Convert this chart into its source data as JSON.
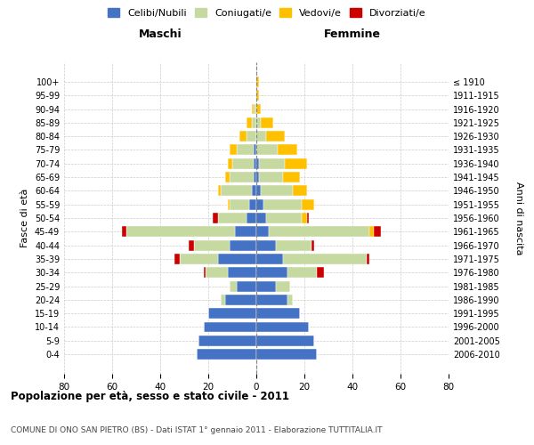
{
  "age_groups": [
    "0-4",
    "5-9",
    "10-14",
    "15-19",
    "20-24",
    "25-29",
    "30-34",
    "35-39",
    "40-44",
    "45-49",
    "50-54",
    "55-59",
    "60-64",
    "65-69",
    "70-74",
    "75-79",
    "80-84",
    "85-89",
    "90-94",
    "95-99",
    "100+"
  ],
  "birth_years": [
    "2006-2010",
    "2001-2005",
    "1996-2000",
    "1991-1995",
    "1986-1990",
    "1981-1985",
    "1976-1980",
    "1971-1975",
    "1966-1970",
    "1961-1965",
    "1956-1960",
    "1951-1955",
    "1946-1950",
    "1941-1945",
    "1936-1940",
    "1931-1935",
    "1926-1930",
    "1921-1925",
    "1916-1920",
    "1911-1915",
    "≤ 1910"
  ],
  "colors": {
    "celibi": "#4472c4",
    "coniugati": "#c5d9a0",
    "vedovi": "#ffc000",
    "divorziati": "#cc0000"
  },
  "maschi": {
    "celibi": [
      25,
      24,
      22,
      20,
      13,
      8,
      12,
      16,
      11,
      9,
      4,
      3,
      2,
      1,
      1,
      1,
      0,
      0,
      0,
      0,
      0
    ],
    "coniugati": [
      0,
      0,
      0,
      0,
      2,
      3,
      9,
      16,
      15,
      45,
      12,
      8,
      13,
      10,
      9,
      7,
      4,
      2,
      1,
      0,
      0
    ],
    "vedovi": [
      0,
      0,
      0,
      0,
      0,
      0,
      0,
      0,
      0,
      0,
      0,
      1,
      1,
      2,
      2,
      3,
      3,
      2,
      1,
      0,
      0
    ],
    "divorziati": [
      0,
      0,
      0,
      0,
      0,
      0,
      1,
      2,
      2,
      2,
      2,
      0,
      0,
      0,
      0,
      0,
      0,
      0,
      0,
      0,
      0
    ]
  },
  "femmine": {
    "celibi": [
      25,
      24,
      22,
      18,
      13,
      8,
      13,
      11,
      8,
      5,
      4,
      3,
      2,
      1,
      1,
      0,
      0,
      0,
      0,
      0,
      0
    ],
    "coniugati": [
      0,
      0,
      0,
      0,
      2,
      6,
      12,
      35,
      15,
      42,
      15,
      16,
      13,
      10,
      11,
      9,
      4,
      2,
      0,
      0,
      0
    ],
    "vedovi": [
      0,
      0,
      0,
      0,
      0,
      0,
      0,
      0,
      0,
      2,
      2,
      5,
      6,
      7,
      9,
      8,
      8,
      5,
      2,
      1,
      1
    ],
    "divorziati": [
      0,
      0,
      0,
      0,
      0,
      0,
      3,
      1,
      1,
      3,
      1,
      0,
      0,
      0,
      0,
      0,
      0,
      0,
      0,
      0,
      0
    ]
  },
  "xlim": 80,
  "title_main": "Popolazione per età, sesso e stato civile - 2011",
  "title_sub": "COMUNE DI ONO SAN PIETRO (BS) - Dati ISTAT 1° gennaio 2011 - Elaborazione TUTTITALIA.IT",
  "ylabel_left": "Fasce di età",
  "ylabel_right": "Anni di nascita",
  "label_maschi": "Maschi",
  "label_femmine": "Femmine",
  "legend_labels": [
    "Celibi/Nubili",
    "Coniugati/e",
    "Vedovi/e",
    "Divorziati/e"
  ],
  "bg_color": "#ffffff",
  "grid_color": "#cccccc"
}
